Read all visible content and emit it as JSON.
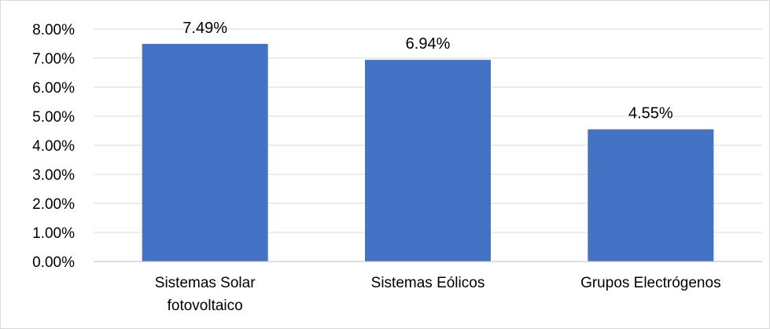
{
  "chart_data": {
    "type": "bar",
    "title": "",
    "xlabel": "",
    "ylabel": "",
    "categories": [
      [
        "Sistemas Solar",
        "fotovoltaico"
      ],
      [
        "Sistemas Eólicos"
      ],
      [
        "Grupos Electrógenos"
      ]
    ],
    "values": [
      7.49,
      6.94,
      4.55
    ],
    "data_labels": [
      "7.49%",
      "6.94%",
      "4.55%"
    ],
    "ylim": [
      0,
      8
    ],
    "yticks": [
      0,
      1,
      2,
      3,
      4,
      5,
      6,
      7,
      8
    ],
    "ytick_labels": [
      "0.00%",
      "1.00%",
      "2.00%",
      "3.00%",
      "4.00%",
      "5.00%",
      "6.00%",
      "7.00%",
      "8.00%"
    ],
    "grid": true,
    "legend": "none",
    "colors": {
      "bar": "#4472c4",
      "grid": "#d9d9d9",
      "axis": "#bfbfbf"
    }
  }
}
